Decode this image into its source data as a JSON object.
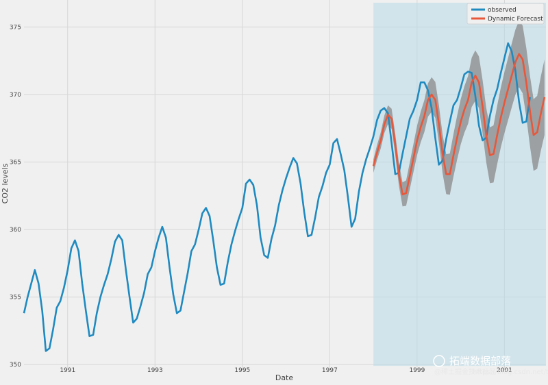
{
  "chart_data": {
    "type": "line",
    "title": "",
    "xlabel": "Date",
    "ylabel": "CO2 levels",
    "xlim": [
      1990.0,
      2001.95
    ],
    "ylim": [
      349.6,
      377.0
    ],
    "x_ticks": [
      {
        "value": 1991,
        "label": "1991"
      },
      {
        "value": 1993,
        "label": "1993"
      },
      {
        "value": 1995,
        "label": "1995"
      },
      {
        "value": 1997,
        "label": "1997"
      },
      {
        "value": 1999,
        "label": "1999"
      },
      {
        "value": 2001,
        "label": "2001"
      }
    ],
    "y_ticks": [
      350,
      355,
      360,
      365,
      370,
      375
    ],
    "grid": true,
    "legend_placement": "top-right",
    "shaded_forecast_region": {
      "x_start": 1998.0,
      "x_end": 2001.95,
      "y_top": 376.8,
      "color": "#b9dbe8"
    },
    "colors": {
      "observed": "#1f8ac0",
      "forecast": "#e8573a",
      "confidence_band": "#8a8a8a",
      "background": "#f0f0f0",
      "grid": "#d6d6d6"
    },
    "series": [
      {
        "name": "observed",
        "color": "#1f8ac0",
        "x_start": 1990.0,
        "x_step": 0.08333,
        "values": [
          353.8,
          355.0,
          356.0,
          357.0,
          356.0,
          354.0,
          351.0,
          351.2,
          352.6,
          354.2,
          354.7,
          355.7,
          357.0,
          358.6,
          359.2,
          358.4,
          356.0,
          354.0,
          352.1,
          352.2,
          353.8,
          355.0,
          355.9,
          356.7,
          357.8,
          359.1,
          359.6,
          359.2,
          357.0,
          355.0,
          353.1,
          353.4,
          354.3,
          355.3,
          356.7,
          357.2,
          358.4,
          359.4,
          360.2,
          359.4,
          357.2,
          355.2,
          353.8,
          354.0,
          355.4,
          356.8,
          358.4,
          358.9,
          360.0,
          361.2,
          361.6,
          361.0,
          359.2,
          357.2,
          355.9,
          356.0,
          357.6,
          358.9,
          359.9,
          360.8,
          361.6,
          363.4,
          363.7,
          363.3,
          361.8,
          359.4,
          358.1,
          357.9,
          359.3,
          360.3,
          361.8,
          362.9,
          363.8,
          364.6,
          365.3,
          364.9,
          363.4,
          361.3,
          359.5,
          359.6,
          360.9,
          362.4,
          363.2,
          364.2,
          364.8,
          366.4,
          366.7,
          365.6,
          364.4,
          362.4,
          360.2,
          360.8,
          362.8,
          364.2,
          365.2,
          366.0,
          366.9,
          368.1,
          368.8,
          369.0,
          368.6,
          366.4,
          364.1,
          364.2,
          365.6,
          366.9,
          368.2,
          368.8,
          369.6,
          370.9,
          370.9,
          370.3,
          369.0,
          366.8,
          364.8,
          365.1,
          366.7,
          368.0,
          369.2,
          369.6,
          370.5,
          371.5,
          371.7,
          371.6,
          369.9,
          367.7,
          366.6,
          366.8,
          368.4,
          369.6,
          370.4,
          371.6,
          372.7,
          373.8,
          373.2,
          371.8,
          369.5,
          367.9,
          368.0,
          369.8
        ]
      },
      {
        "name": "Dynamic Forecast",
        "color": "#e8573a",
        "x_start": 1998.0,
        "x_step": 0.08333,
        "values": [
          364.7,
          365.7,
          366.6,
          367.8,
          368.5,
          368.2,
          366.3,
          364.1,
          362.6,
          362.7,
          364.0,
          365.3,
          366.6,
          367.6,
          368.4,
          369.6,
          370.0,
          369.6,
          367.8,
          365.6,
          364.1,
          364.1,
          365.5,
          366.8,
          368.0,
          368.9,
          369.6,
          370.9,
          371.4,
          370.9,
          369.1,
          367.0,
          365.5,
          365.6,
          367.0,
          368.3,
          369.4,
          370.4,
          371.4,
          372.4,
          373.0,
          372.6,
          370.9,
          368.8,
          367.0,
          367.2,
          368.6,
          369.8
        ],
        "band_halfwidth_start": 0.5,
        "band_halfwidth_end": 2.8
      }
    ]
  },
  "watermark": {
    "main": "拓端数据部落",
    "sub": "@稀土掘金技术社区",
    "url": "https://blog.csdn.net/tecdat1990"
  }
}
